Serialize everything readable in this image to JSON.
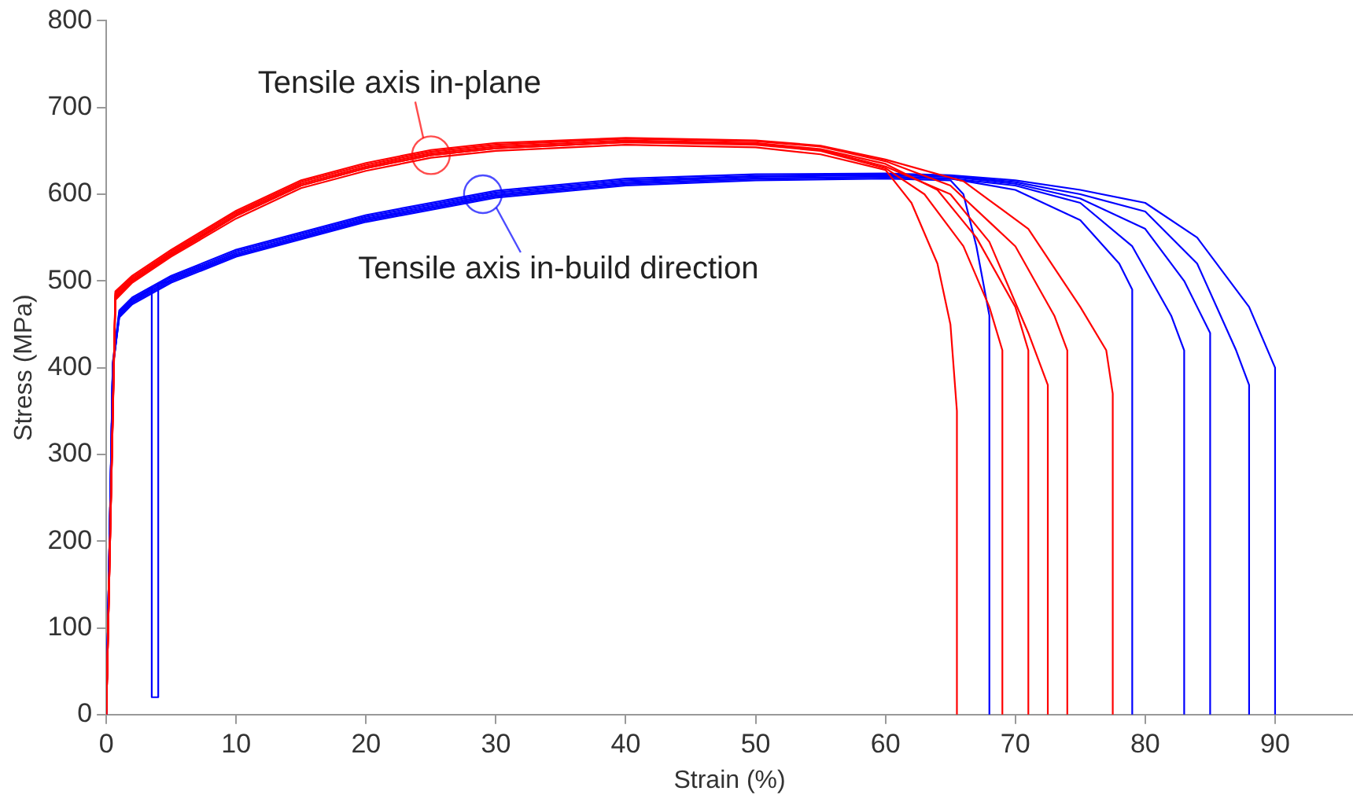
{
  "chart_data": {
    "type": "line",
    "xlabel": "Strain (%)",
    "ylabel": "Stress (MPa)",
    "xlim": [
      0,
      96
    ],
    "xticks": [
      0,
      10,
      20,
      30,
      40,
      50,
      60,
      70,
      80,
      90
    ],
    "ylim": [
      0,
      800
    ],
    "yticks": [
      0,
      100,
      200,
      300,
      400,
      500,
      600,
      700,
      800
    ],
    "grid": false,
    "legend": false,
    "marker": "none",
    "line_style": "solid",
    "annotations": [
      {
        "text": "Tensile axis in-plane",
        "x": 25,
        "y": 645
      },
      {
        "text": "Tensile axis in-build direction",
        "x": 29,
        "y": 600
      }
    ],
    "series": [
      {
        "color": "#ff0000",
        "x": [
          0,
          0.7,
          2,
          5,
          10,
          15,
          20,
          25,
          30,
          40,
          50,
          55,
          60,
          62,
          64,
          65,
          65.5,
          65.5
        ],
        "values": [
          0,
          478,
          498,
          528,
          572,
          607,
          627,
          642,
          650,
          657,
          654,
          646,
          628,
          590,
          520,
          450,
          350,
          0
        ]
      },
      {
        "color": "#ff0000",
        "x": [
          0,
          0.7,
          2,
          5,
          10,
          15,
          20,
          25,
          30,
          40,
          50,
          55,
          60,
          63,
          66,
          68,
          69,
          69
        ],
        "values": [
          0,
          482,
          500,
          530,
          575,
          610,
          630,
          645,
          653,
          660,
          657,
          650,
          630,
          600,
          540,
          470,
          420,
          0
        ]
      },
      {
        "color": "#ff0000",
        "x": [
          0,
          0.7,
          2,
          5,
          10,
          15,
          20,
          25,
          30,
          40,
          50,
          55,
          60,
          64,
          67,
          70,
          71,
          71
        ],
        "values": [
          0,
          484,
          502,
          532,
          577,
          612,
          632,
          647,
          655,
          662,
          659,
          652,
          635,
          605,
          550,
          470,
          420,
          0
        ]
      },
      {
        "color": "#ff0000",
        "x": [
          0,
          0.7,
          2,
          5,
          10,
          15,
          20,
          25,
          30,
          40,
          50,
          55,
          60,
          65,
          68,
          71,
          72.5,
          72.5
        ],
        "values": [
          0,
          480,
          500,
          530,
          575,
          610,
          630,
          645,
          653,
          660,
          658,
          651,
          632,
          600,
          545,
          440,
          380,
          0
        ]
      },
      {
        "color": "#ff0000",
        "x": [
          0,
          0.7,
          2,
          5,
          10,
          15,
          20,
          25,
          30,
          40,
          50,
          55,
          60,
          65,
          70,
          73,
          74,
          74
        ],
        "values": [
          0,
          486,
          504,
          534,
          579,
          614,
          634,
          649,
          657,
          664,
          661,
          655,
          638,
          610,
          540,
          460,
          420,
          0
        ]
      },
      {
        "color": "#ff0000",
        "x": [
          0,
          0.7,
          2,
          5,
          10,
          15,
          20,
          25,
          30,
          40,
          50,
          55,
          60,
          66,
          71,
          75,
          77,
          77.5,
          77.5
        ],
        "values": [
          0,
          488,
          506,
          536,
          581,
          616,
          636,
          651,
          659,
          665,
          662,
          656,
          640,
          615,
          560,
          470,
          420,
          370,
          0
        ]
      },
      {
        "color": "#0000ff",
        "x": [
          0,
          0.5,
          1,
          2,
          5,
          10,
          20,
          30,
          40,
          50,
          60,
          65,
          66,
          67,
          68,
          68
        ],
        "values": [
          0,
          400,
          458,
          473,
          498,
          528,
          568,
          596,
          610,
          616,
          618,
          616,
          600,
          540,
          460,
          0
        ]
      },
      {
        "color": "#0000ff",
        "x": [
          0,
          0.5,
          1,
          2,
          5,
          10,
          20,
          30,
          40,
          50,
          60,
          65,
          70,
          75,
          78,
          79,
          79
        ],
        "values": [
          0,
          400,
          460,
          475,
          500,
          530,
          570,
          598,
          612,
          618,
          620,
          618,
          605,
          570,
          520,
          490,
          0
        ]
      },
      {
        "color": "#0000ff",
        "x": [
          0,
          0.5,
          1,
          2,
          3.5,
          3.5,
          4,
          4,
          5,
          10,
          20,
          30,
          40,
          50,
          60,
          65,
          70,
          75,
          79,
          82,
          83,
          83
        ],
        "values": [
          0,
          400,
          460,
          475,
          492,
          20,
          20,
          497,
          500,
          530,
          570,
          598,
          612,
          618,
          620,
          618,
          610,
          590,
          540,
          460,
          420,
          0
        ]
      },
      {
        "color": "#0000ff",
        "x": [
          0,
          0.5,
          1,
          2,
          5,
          10,
          20,
          30,
          40,
          50,
          60,
          65,
          70,
          75,
          80,
          83,
          85,
          85
        ],
        "values": [
          0,
          402,
          462,
          477,
          502,
          532,
          572,
          600,
          614,
          620,
          622,
          620,
          612,
          595,
          560,
          500,
          440,
          0
        ]
      },
      {
        "color": "#0000ff",
        "x": [
          0,
          0.5,
          1,
          2,
          5,
          10,
          20,
          30,
          40,
          50,
          60,
          65,
          70,
          75,
          80,
          84,
          87,
          88,
          88
        ],
        "values": [
          0,
          404,
          464,
          479,
          504,
          534,
          574,
          602,
          616,
          621,
          623,
          621,
          614,
          600,
          580,
          520,
          420,
          380,
          0
        ]
      },
      {
        "color": "#0000ff",
        "x": [
          0,
          0.5,
          1,
          2,
          5,
          10,
          20,
          30,
          40,
          50,
          60,
          65,
          70,
          75,
          80,
          84,
          88,
          90,
          90
        ],
        "values": [
          0,
          406,
          466,
          481,
          506,
          536,
          576,
          604,
          618,
          623,
          624,
          622,
          616,
          605,
          590,
          550,
          470,
          400,
          0
        ]
      }
    ]
  }
}
